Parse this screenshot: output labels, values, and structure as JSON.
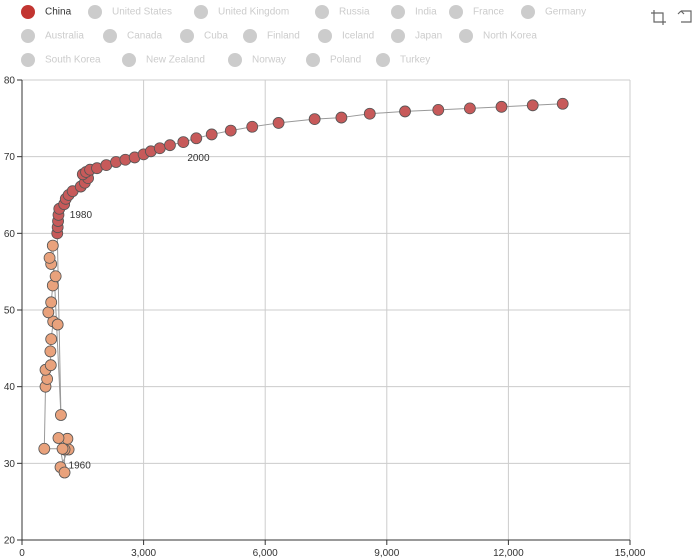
{
  "chart_data": {
    "type": "scatter",
    "title": "",
    "xlabel": "",
    "ylabel": "",
    "xlim": [
      0,
      15000
    ],
    "ylim": [
      20,
      80
    ],
    "x_ticks": [
      {
        "value": 0,
        "label": "0"
      },
      {
        "value": 3000,
        "label": "3,000"
      },
      {
        "value": 6000,
        "label": "6,000"
      },
      {
        "value": 9000,
        "label": "9,000"
      },
      {
        "value": 12000,
        "label": "12,000"
      },
      {
        "value": 15000,
        "label": "15,000"
      }
    ],
    "y_ticks": [
      {
        "value": 20,
        "label": "20"
      },
      {
        "value": 30,
        "label": "30"
      },
      {
        "value": 40,
        "label": "40"
      },
      {
        "value": 50,
        "label": "50"
      },
      {
        "value": 60,
        "label": "60"
      },
      {
        "value": 70,
        "label": "70"
      },
      {
        "value": 80,
        "label": "80"
      }
    ],
    "grid": true,
    "legend_position": "top",
    "legend": [
      {
        "name": "China",
        "active": true
      },
      {
        "name": "United States",
        "active": false
      },
      {
        "name": "United Kingdom",
        "active": false
      },
      {
        "name": "Russia",
        "active": false
      },
      {
        "name": "India",
        "active": false
      },
      {
        "name": "France",
        "active": false
      },
      {
        "name": "Germany",
        "active": false
      },
      {
        "name": "Australia",
        "active": false
      },
      {
        "name": "Canada",
        "active": false
      },
      {
        "name": "Cuba",
        "active": false
      },
      {
        "name": "Finland",
        "active": false
      },
      {
        "name": "Iceland",
        "active": false
      },
      {
        "name": "Japan",
        "active": false
      },
      {
        "name": "North Korea",
        "active": false
      },
      {
        "name": "South Korea",
        "active": false
      },
      {
        "name": "New Zealand",
        "active": false
      },
      {
        "name": "Norway",
        "active": false
      },
      {
        "name": "Poland",
        "active": false
      },
      {
        "name": "Turkey",
        "active": false
      }
    ],
    "series": [
      {
        "name": "China",
        "color_early": "#e9a27c",
        "color_late": "#c75a5a",
        "points": [
          {
            "x": 950,
            "y": 29.5,
            "phase": "early"
          },
          {
            "x": 1150,
            "y": 31.8,
            "phase": "early"
          },
          {
            "x": 1120,
            "y": 33.2,
            "phase": "early"
          },
          {
            "x": 900,
            "y": 33.3,
            "phase": "early"
          },
          {
            "x": 1050,
            "y": 28.8,
            "phase": "early"
          },
          {
            "x": 1050,
            "y": 31.8,
            "phase": "early",
            "label": "1960"
          },
          {
            "x": 1000,
            "y": 31.9,
            "phase": "early"
          },
          {
            "x": 550,
            "y": 31.9,
            "phase": "early"
          },
          {
            "x": 580,
            "y": 40.0,
            "phase": "early"
          },
          {
            "x": 620,
            "y": 41.0,
            "phase": "early"
          },
          {
            "x": 580,
            "y": 42.2,
            "phase": "early"
          },
          {
            "x": 710,
            "y": 42.8,
            "phase": "early"
          },
          {
            "x": 700,
            "y": 44.6,
            "phase": "early"
          },
          {
            "x": 720,
            "y": 46.2,
            "phase": "early"
          },
          {
            "x": 770,
            "y": 48.5,
            "phase": "early"
          },
          {
            "x": 880,
            "y": 48.1,
            "phase": "early"
          },
          {
            "x": 650,
            "y": 49.7,
            "phase": "early"
          },
          {
            "x": 720,
            "y": 51.0,
            "phase": "early"
          },
          {
            "x": 760,
            "y": 53.2,
            "phase": "early"
          },
          {
            "x": 830,
            "y": 54.4,
            "phase": "early"
          },
          {
            "x": 720,
            "y": 56.0,
            "phase": "early"
          },
          {
            "x": 680,
            "y": 56.8,
            "phase": "early"
          },
          {
            "x": 760,
            "y": 58.4,
            "phase": "early"
          },
          {
            "x": 960,
            "y": 36.3,
            "phase": "early"
          },
          {
            "x": 870,
            "y": 60.0,
            "phase": "late"
          },
          {
            "x": 880,
            "y": 60.8,
            "phase": "late"
          },
          {
            "x": 890,
            "y": 61.6,
            "phase": "late"
          },
          {
            "x": 900,
            "y": 62.4,
            "phase": "late"
          },
          {
            "x": 920,
            "y": 63.2,
            "phase": "late"
          },
          {
            "x": 1040,
            "y": 63.8,
            "phase": "late"
          },
          {
            "x": 1080,
            "y": 64.5,
            "phase": "late",
            "label": "1980"
          },
          {
            "x": 1150,
            "y": 65.0,
            "phase": "late"
          },
          {
            "x": 1250,
            "y": 65.5,
            "phase": "late"
          },
          {
            "x": 1450,
            "y": 66.1,
            "phase": "late"
          },
          {
            "x": 1550,
            "y": 66.6,
            "phase": "late"
          },
          {
            "x": 1630,
            "y": 67.2,
            "phase": "late"
          },
          {
            "x": 1500,
            "y": 67.7,
            "phase": "late"
          },
          {
            "x": 1580,
            "y": 68.0,
            "phase": "late"
          },
          {
            "x": 1680,
            "y": 68.3,
            "phase": "late"
          },
          {
            "x": 1850,
            "y": 68.5,
            "phase": "late"
          },
          {
            "x": 2080,
            "y": 68.9,
            "phase": "late"
          },
          {
            "x": 2320,
            "y": 69.3,
            "phase": "late"
          },
          {
            "x": 2550,
            "y": 69.6,
            "phase": "late"
          },
          {
            "x": 2780,
            "y": 69.9,
            "phase": "late"
          },
          {
            "x": 3000,
            "y": 70.3,
            "phase": "late"
          },
          {
            "x": 3180,
            "y": 70.7,
            "phase": "late"
          },
          {
            "x": 3400,
            "y": 71.1,
            "phase": "late"
          },
          {
            "x": 3650,
            "y": 71.5,
            "phase": "late"
          },
          {
            "x": 3980,
            "y": 71.9,
            "phase": "late",
            "label": "2000"
          },
          {
            "x": 4300,
            "y": 72.4,
            "phase": "late"
          },
          {
            "x": 4680,
            "y": 72.9,
            "phase": "late"
          },
          {
            "x": 5150,
            "y": 73.4,
            "phase": "late"
          },
          {
            "x": 5680,
            "y": 73.9,
            "phase": "late"
          },
          {
            "x": 6330,
            "y": 74.4,
            "phase": "late"
          },
          {
            "x": 7220,
            "y": 74.9,
            "phase": "late"
          },
          {
            "x": 7880,
            "y": 75.1,
            "phase": "late"
          },
          {
            "x": 8580,
            "y": 75.6,
            "phase": "late"
          },
          {
            "x": 9450,
            "y": 75.9,
            "phase": "late"
          },
          {
            "x": 10270,
            "y": 76.1,
            "phase": "late"
          },
          {
            "x": 11050,
            "y": 76.3,
            "phase": "late"
          },
          {
            "x": 11830,
            "y": 76.5,
            "phase": "late"
          },
          {
            "x": 12600,
            "y": 76.7,
            "phase": "late"
          },
          {
            "x": 13340,
            "y": 76.9,
            "phase": "late"
          }
        ]
      }
    ],
    "colors": {
      "legend_active": "#c23531",
      "legend_inactive": "#cccccc",
      "legend_text_active": "#333333",
      "legend_text_inactive": "#cccccc",
      "grid": "#cccccc",
      "axis": "#333333",
      "arrow": "#999999",
      "point_stroke": "#555555"
    }
  },
  "toolbox": {
    "icons": [
      "zoom-icon",
      "zoom-reset-icon"
    ]
  }
}
